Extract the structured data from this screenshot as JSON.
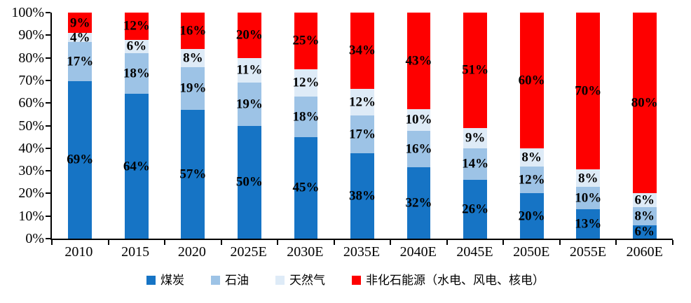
{
  "chart_data": {
    "type": "bar",
    "stacked": true,
    "normalized_to_100": true,
    "title": "",
    "xlabel": "",
    "ylabel": "",
    "ylim": [
      0,
      100
    ],
    "grid": false,
    "legend_position": "bottom",
    "y_ticks": [
      "0%",
      "10%",
      "20%",
      "30%",
      "40%",
      "50%",
      "60%",
      "70%",
      "80%",
      "90%",
      "100%"
    ],
    "categories": [
      "2010",
      "2015",
      "2020",
      "2025E",
      "2030E",
      "2035E",
      "2040E",
      "2045E",
      "2050E",
      "2055E",
      "2060E"
    ],
    "series": [
      {
        "key": "coal",
        "name": "煤炭",
        "color": "#1674C5",
        "values": [
          69,
          64,
          57,
          50,
          45,
          38,
          32,
          26,
          20,
          13,
          6
        ]
      },
      {
        "key": "oil",
        "name": "石油",
        "color": "#9DC3E6",
        "values": [
          17,
          18,
          19,
          19,
          18,
          17,
          16,
          14,
          12,
          10,
          8
        ]
      },
      {
        "key": "gas",
        "name": "天然气",
        "color": "#DEEBF7",
        "values": [
          4,
          6,
          8,
          11,
          12,
          12,
          10,
          9,
          8,
          8,
          6
        ]
      },
      {
        "key": "nonfossil",
        "name": "非化石能源（水电、风电、核电）",
        "color": "#FE0000",
        "values": [
          9,
          12,
          16,
          20,
          25,
          34,
          43,
          51,
          60,
          70,
          80
        ]
      }
    ],
    "label_suffix": "%"
  },
  "colors": {
    "axis": "#000000",
    "label": "#000000",
    "background": "#FFFFFF"
  }
}
